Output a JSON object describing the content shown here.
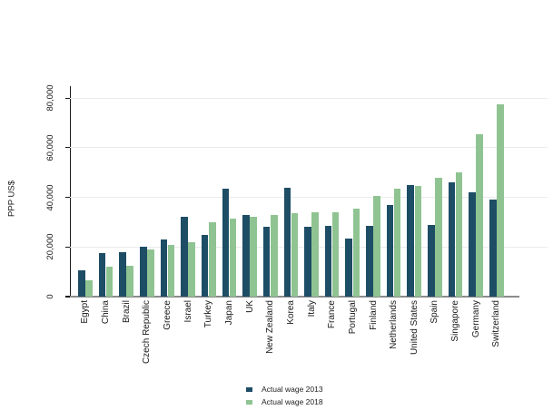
{
  "chart_data": {
    "type": "bar",
    "title": "",
    "ylabel": "PPP US$",
    "xlabel": "",
    "grid": "horizontal",
    "legend_position": "bottom-center",
    "x_label_rotation": 90,
    "y_label_rotation": 90,
    "ylim": [
      0,
      84000
    ],
    "ytick_values": [
      0,
      20000,
      40000,
      60000,
      80000
    ],
    "ytick_labels": [
      "0",
      "20,000",
      "40,000",
      "60,000",
      "80,000"
    ],
    "categories": [
      "Egypt",
      "China",
      "Brazil",
      "Czech Republic",
      "Greece",
      "Israel",
      "Turkey",
      "Japan",
      "UK",
      "New Zealand",
      "Korea",
      "Italy",
      "France",
      "Portugal",
      "Finland",
      "Netherlands",
      "United States",
      "Spain",
      "Singapore",
      "Germany",
      "Switzerland"
    ],
    "series": [
      {
        "name": "Actual wage 2013",
        "color": "#1e4d66",
        "values": [
          10500,
          17500,
          18000,
          20000,
          23000,
          32000,
          25000,
          43500,
          33000,
          28000,
          44000,
          28000,
          28500,
          23500,
          28500,
          37000,
          45000,
          29000,
          46000,
          42000,
          39000
        ]
      },
      {
        "name": "Actual wage 2018",
        "color": "#8fc492",
        "values": [
          6500,
          12000,
          12500,
          19000,
          21000,
          22000,
          30000,
          31500,
          32000,
          33000,
          33500,
          34000,
          34000,
          35500,
          40500,
          43500,
          44500,
          48000,
          50000,
          65500,
          77500
        ]
      }
    ]
  }
}
